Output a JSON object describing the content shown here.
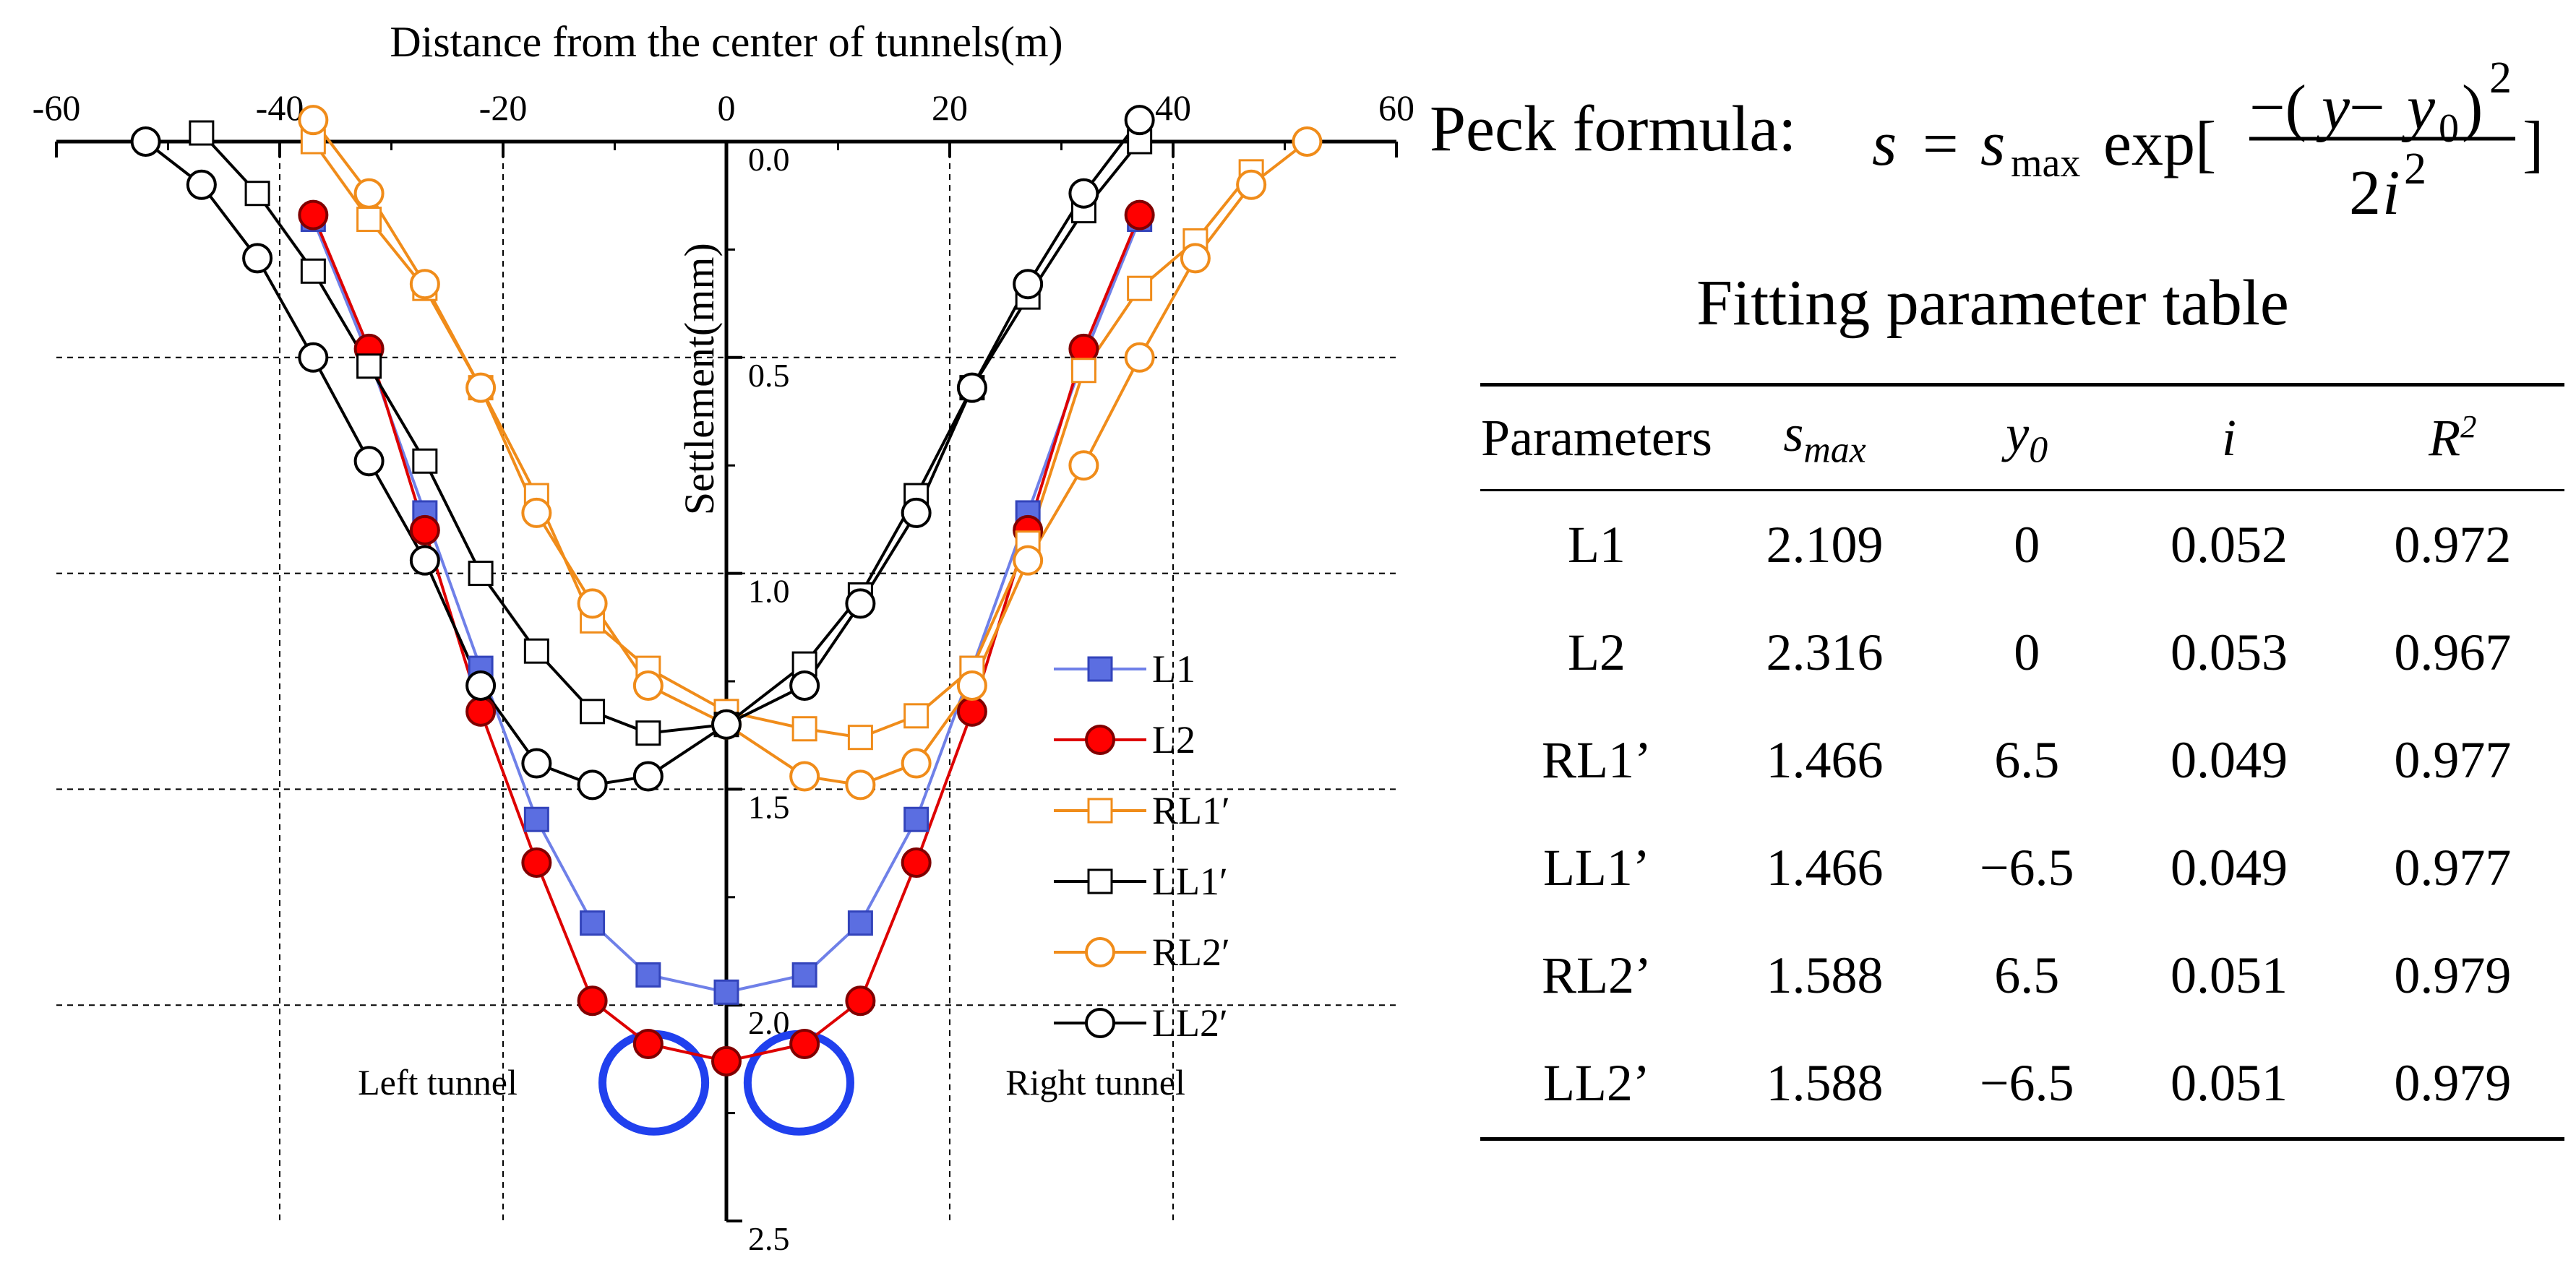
{
  "chart_data": {
    "type": "line",
    "title": "",
    "xlabel": "Distance from the center of tunnels(m)",
    "ylabel": "Settlement(mm)",
    "xlim": [
      -60,
      60
    ],
    "ylim": [
      0,
      2.5
    ],
    "y_inverted": true,
    "x_axis_position": "top",
    "y_axis_position": "center",
    "grid": "dashed",
    "x_ticks": [
      "-60",
      "-40",
      "-20",
      "0",
      "20",
      "40",
      "60"
    ],
    "x_tick_values": [
      -60,
      -40,
      -20,
      0,
      20,
      40,
      60
    ],
    "y_ticks": [
      "0.0",
      "0.5",
      "1.0",
      "1.5",
      "2.0",
      "2.5"
    ],
    "y_tick_values": [
      0,
      0.5,
      1.0,
      1.5,
      2.0,
      2.5
    ],
    "legend_position": "center-right",
    "series": [
      {
        "name": "L1",
        "marker": "square",
        "filled": true,
        "color": "#3344bb",
        "fill": "#5b6ee1",
        "line": "#6f80e8",
        "points": [
          [
            -37,
            0.18
          ],
          [
            -32,
            0.5
          ],
          [
            -27,
            0.86
          ],
          [
            -22,
            1.22
          ],
          [
            -17,
            1.57
          ],
          [
            -12,
            1.81
          ],
          [
            -7,
            1.93
          ],
          [
            0,
            1.97
          ],
          [
            7,
            1.93
          ],
          [
            12,
            1.81
          ],
          [
            17,
            1.57
          ],
          [
            22,
            1.22
          ],
          [
            27,
            0.86
          ],
          [
            32,
            0.5
          ],
          [
            37,
            0.18
          ]
        ]
      },
      {
        "name": "L2",
        "marker": "circle",
        "filled": true,
        "color": "#800000",
        "fill": "#ff0000",
        "line": "#dd0000",
        "points": [
          [
            -37,
            0.17
          ],
          [
            -32,
            0.48
          ],
          [
            -27,
            0.9
          ],
          [
            -22,
            1.32
          ],
          [
            -17,
            1.67
          ],
          [
            -12,
            1.99
          ],
          [
            -7,
            2.09
          ],
          [
            0,
            2.13
          ],
          [
            7,
            2.09
          ],
          [
            12,
            1.99
          ],
          [
            17,
            1.67
          ],
          [
            22,
            1.32
          ],
          [
            27,
            0.9
          ],
          [
            32,
            0.48
          ],
          [
            37,
            0.17
          ]
        ]
      },
      {
        "name": "RL1′",
        "marker": "square",
        "filled": false,
        "color": "#f08c1a",
        "fill": "#ffffff",
        "line": "#f08c1a",
        "points": [
          [
            -37,
            0.0
          ],
          [
            -32,
            0.18
          ],
          [
            -27,
            0.34
          ],
          [
            -22,
            0.57
          ],
          [
            -17,
            0.82
          ],
          [
            -12,
            1.11
          ],
          [
            -7,
            1.22
          ],
          [
            0,
            1.32
          ],
          [
            7,
            1.36
          ],
          [
            12,
            1.38
          ],
          [
            17,
            1.33
          ],
          [
            22,
            1.22
          ],
          [
            27,
            0.93
          ],
          [
            32,
            0.53
          ],
          [
            37,
            0.34
          ],
          [
            42,
            0.23
          ],
          [
            47,
            0.07
          ]
        ]
      },
      {
        "name": "LL1′",
        "marker": "square",
        "filled": false,
        "color": "#000000",
        "fill": "#ffffff",
        "line": "#000000",
        "points": [
          [
            -47,
            -0.02
          ],
          [
            -42,
            0.12
          ],
          [
            -37,
            0.3
          ],
          [
            -32,
            0.52
          ],
          [
            -27,
            0.74
          ],
          [
            -22,
            1.0
          ],
          [
            -17,
            1.18
          ],
          [
            -12,
            1.32
          ],
          [
            -7,
            1.37
          ],
          [
            0,
            1.35
          ],
          [
            7,
            1.21
          ],
          [
            12,
            1.05
          ],
          [
            17,
            0.82
          ],
          [
            22,
            0.57
          ],
          [
            27,
            0.36
          ],
          [
            32,
            0.16
          ],
          [
            37,
            0.0
          ]
        ]
      },
      {
        "name": "RL2′",
        "marker": "circle",
        "filled": false,
        "color": "#f08c1a",
        "fill": "#ffffff",
        "line": "#f08c1a",
        "points": [
          [
            -37,
            -0.05
          ],
          [
            -32,
            0.12
          ],
          [
            -27,
            0.33
          ],
          [
            -22,
            0.57
          ],
          [
            -17,
            0.86
          ],
          [
            -12,
            1.07
          ],
          [
            -7,
            1.26
          ],
          [
            0,
            1.35
          ],
          [
            7,
            1.47
          ],
          [
            12,
            1.49
          ],
          [
            17,
            1.44
          ],
          [
            22,
            1.26
          ],
          [
            27,
            0.97
          ],
          [
            32,
            0.75
          ],
          [
            37,
            0.5
          ],
          [
            42,
            0.27
          ],
          [
            47,
            0.1
          ],
          [
            52,
            0.0
          ]
        ]
      },
      {
        "name": "LL2′",
        "marker": "circle",
        "filled": false,
        "color": "#000000",
        "fill": "#ffffff",
        "line": "#000000",
        "points": [
          [
            -52,
            0.0
          ],
          [
            -47,
            0.1
          ],
          [
            -42,
            0.27
          ],
          [
            -37,
            0.5
          ],
          [
            -32,
            0.74
          ],
          [
            -27,
            0.97
          ],
          [
            -22,
            1.26
          ],
          [
            -17,
            1.44
          ],
          [
            -12,
            1.49
          ],
          [
            -7,
            1.47
          ],
          [
            0,
            1.35
          ],
          [
            7,
            1.26
          ],
          [
            12,
            1.07
          ],
          [
            17,
            0.86
          ],
          [
            22,
            0.57
          ],
          [
            27,
            0.33
          ],
          [
            32,
            0.12
          ],
          [
            37,
            -0.05
          ]
        ]
      }
    ],
    "annotations": [
      {
        "text": "Left tunnel",
        "x": -33,
        "y": 2.18
      },
      {
        "text": "Right tunnel",
        "x": 25,
        "y": 2.18
      }
    ],
    "tunnels": [
      {
        "name": "left tunnel",
        "center_x": -6.5,
        "center_y": 2.18,
        "radius": 4.6,
        "color": "#2040ee"
      },
      {
        "name": "right tunnel",
        "center_x": 6.5,
        "center_y": 2.18,
        "radius": 4.6,
        "color": "#2040ee"
      }
    ]
  },
  "formula": {
    "label": "Peck formula:",
    "lhs": "s",
    "equals": "=",
    "s_sym": "s",
    "s_sub": "max",
    "exp": "exp[",
    "numerator_minus": "−(",
    "y": "y",
    "minus": " − ",
    "y0": "y",
    "y0_sub": "0",
    "num_close": ")",
    "num_pow": "2",
    "denominator": "2",
    "denom_i": "i",
    "denom_pow": "2",
    "close": "]"
  },
  "table": {
    "title": "Fitting parameter table",
    "headers": [
      {
        "base": "Parameters",
        "sub": "",
        "sup": "",
        "italic": false
      },
      {
        "base": "s",
        "sub": "max",
        "sup": "",
        "italic": true
      },
      {
        "base": "y",
        "sub": "0",
        "sup": "",
        "italic": true
      },
      {
        "base": "i",
        "sub": "",
        "sup": "",
        "italic": true
      },
      {
        "base": "R",
        "sub": "",
        "sup": "2",
        "italic": true
      }
    ],
    "rows": [
      [
        "L1",
        "2.109",
        "0",
        "0.052",
        "0.972"
      ],
      [
        "L2",
        "2.316",
        "0",
        "0.053",
        "0.967"
      ],
      [
        "RL1’",
        "1.466",
        "6.5",
        "0.049",
        "0.977"
      ],
      [
        "LL1’",
        "1.466",
        "−6.5",
        "0.049",
        "0.977"
      ],
      [
        "RL2’",
        "1.588",
        "6.5",
        "0.051",
        "0.979"
      ],
      [
        "LL2’",
        "1.588",
        "−6.5",
        "0.051",
        "0.979"
      ]
    ]
  }
}
